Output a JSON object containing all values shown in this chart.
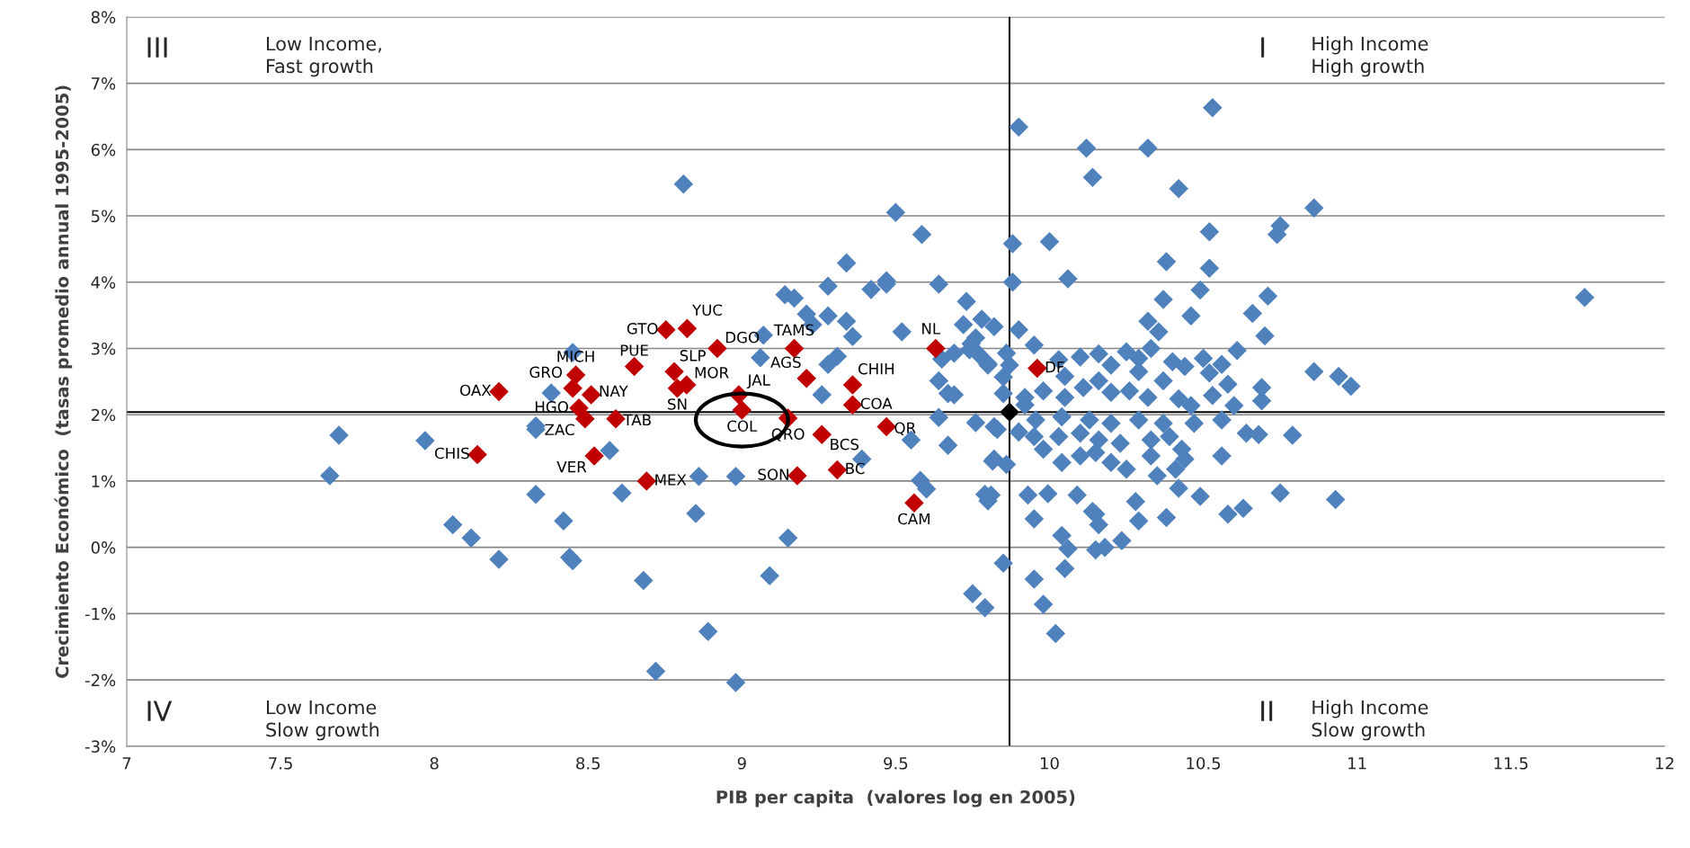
{
  "chart_data": {
    "type": "scatter",
    "xlabel": "PIB per capita  (valores log en 2005)",
    "ylabel": "Crecimiento Económico  (tasas promedio annual 1995-2005)",
    "xlim": [
      7,
      12
    ],
    "xticks": [
      7,
      7.5,
      8,
      8.5,
      9,
      9.5,
      10,
      10.5,
      11,
      11.5,
      12
    ],
    "ylim": [
      -3,
      8
    ],
    "yticks": [
      {
        "value": -3,
        "label": "-3%"
      },
      {
        "value": -2,
        "label": "-2%"
      },
      {
        "value": -1,
        "label": "-1%"
      },
      {
        "value": 0,
        "label": "0%"
      },
      {
        "value": 1,
        "label": "1%"
      },
      {
        "value": 2,
        "label": "2%"
      },
      {
        "value": 3,
        "label": "3%"
      },
      {
        "value": 4,
        "label": "4%"
      },
      {
        "value": 5,
        "label": "5%"
      },
      {
        "value": 6,
        "label": "6%"
      },
      {
        "value": 7,
        "label": "7%"
      },
      {
        "value": 8,
        "label": "8%"
      }
    ],
    "grid": "y",
    "legend": false,
    "marker": "diamond",
    "ref_lines": [
      {
        "axis": "y",
        "value": 2.04,
        "color": "#000000"
      },
      {
        "axis": "x",
        "value": 9.87,
        "color": "#000000"
      }
    ],
    "annotations": [
      "III",
      "Low Income,\nFast growth",
      "I",
      "High Income\nHigh growth",
      "IV",
      "Low Income\nSlow growth",
      "II",
      "High Income\nSlow growth"
    ],
    "series": [
      {
        "color": "#4f81bd",
        "x": [
          7.66,
          7.69,
          7.97,
          8.06,
          8.12,
          8.21,
          8.33,
          8.33,
          8.33,
          8.42,
          8.44,
          8.45,
          8.45,
          8.38,
          8.57,
          8.61,
          8.68,
          8.72,
          8.81,
          8.85,
          8.86,
          8.89,
          8.98,
          8.98,
          9.06,
          9.07,
          9.09,
          9.14,
          9.17,
          9.15,
          9.21,
          9.23,
          9.28,
          9.28,
          9.31,
          9.28,
          9.26,
          9.34,
          9.34,
          9.36,
          9.39,
          9.42,
          9.47,
          9.47,
          9.5,
          9.52,
          9.55,
          9.58,
          9.6,
          9.585,
          9.64,
          9.64,
          9.65,
          9.69,
          9.64,
          9.67,
          9.69,
          9.67,
          9.73,
          9.72,
          9.74,
          9.76,
          9.745,
          9.77,
          9.78,
          9.76,
          9.75,
          9.79,
          9.8,
          9.82,
          9.79,
          9.8,
          9.82,
          9.83,
          9.85,
          9.85,
          9.85,
          9.86,
          9.88,
          9.88,
          9.9,
          9.9,
          9.86,
          9.9,
          9.92,
          9.95,
          9.95,
          9.98,
          10.0,
          10.02,
          10.05,
          10.04,
          10.06,
          10.12,
          10.14,
          10.15,
          10.16,
          10.18,
          10.32,
          10.42,
          10.38,
          10.53,
          10.52,
          10.52,
          10.49,
          10.46,
          10.37,
          10.32,
          10.355,
          10.75,
          10.74,
          10.86,
          10.71,
          10.66,
          10.7,
          10.61,
          10.86,
          10.79,
          10.75,
          10.93,
          10.94,
          10.98,
          11.74,
          10.63,
          10.58,
          10.49,
          9.95,
          9.8,
          9.87,
          10.03,
          10.1,
          10.16,
          10.2,
          10.25,
          10.29,
          10.33,
          10.29,
          10.4,
          10.44,
          10.5,
          10.56,
          10.52,
          10.37,
          10.58,
          10.69,
          10.69,
          10.05,
          9.92,
          9.98,
          10.05,
          10.11,
          10.16,
          10.2,
          10.26,
          10.32,
          10.42,
          10.46,
          10.53,
          10.6,
          9.82,
          9.955,
          10.04,
          10.13,
          10.2,
          10.29,
          10.37,
          10.47,
          10.56,
          10.64,
          10.68,
          9.95,
          10.03,
          10.1,
          10.16,
          10.23,
          10.33,
          10.39,
          10.43,
          10.56,
          9.815,
          9.98,
          10.04,
          10.1,
          10.15,
          10.2,
          10.25,
          10.33,
          10.35,
          10.41,
          10.44,
          9.81,
          9.93,
          9.995,
          10.09,
          10.14,
          10.28,
          10.29,
          10.38,
          10.42,
          10.06,
          10.15,
          10.235
        ],
        "values": [
          1.08,
          1.69,
          1.61,
          0.34,
          0.14,
          -0.18,
          1.83,
          1.78,
          0.8,
          0.4,
          -0.15,
          -0.2,
          2.94,
          2.33,
          1.46,
          0.82,
          -0.5,
          -1.87,
          5.48,
          0.51,
          1.07,
          -1.27,
          1.07,
          -2.04,
          2.86,
          3.2,
          -0.43,
          3.81,
          3.76,
          0.14,
          3.52,
          3.36,
          3.94,
          3.49,
          2.88,
          2.76,
          2.3,
          4.29,
          3.41,
          3.18,
          1.33,
          3.89,
          4.02,
          3.97,
          5.05,
          3.25,
          1.62,
          1.01,
          0.88,
          4.72,
          3.97,
          2.51,
          2.84,
          2.93,
          1.96,
          1.54,
          2.3,
          2.32,
          3.71,
          3.36,
          2.98,
          3.16,
          3.07,
          2.91,
          3.44,
          1.88,
          -0.7,
          -0.91,
          2.77,
          3.33,
          0.8,
          0.7,
          1.33,
          1.78,
          2.57,
          2.32,
          -0.24,
          2.93,
          4.0,
          4.58,
          6.34,
          3.28,
          1.25,
          1.74,
          2.15,
          -0.48,
          0.43,
          -0.86,
          4.61,
          -1.3,
          -0.32,
          0.18,
          4.05,
          6.02,
          5.58,
          0.5,
          0.34,
          0.0,
          6.02,
          5.41,
          4.31,
          6.63,
          4.76,
          4.21,
          3.88,
          3.49,
          3.74,
          3.41,
          3.25,
          4.85,
          4.72,
          5.12,
          3.79,
          3.53,
          3.19,
          2.97,
          2.65,
          1.69,
          0.82,
          0.72,
          2.58,
          2.43,
          3.77,
          0.59,
          0.5,
          0.77,
          3.05,
          2.75,
          2.75,
          2.83,
          2.87,
          2.92,
          2.75,
          2.95,
          2.85,
          3.0,
          2.65,
          2.8,
          2.73,
          2.85,
          2.76,
          2.63,
          2.51,
          2.46,
          2.41,
          2.21,
          2.58,
          2.26,
          2.36,
          2.26,
          2.41,
          2.51,
          2.34,
          2.36,
          2.26,
          2.24,
          2.14,
          2.29,
          2.14,
          1.82,
          1.92,
          1.97,
          1.92,
          1.87,
          1.92,
          1.87,
          1.87,
          1.92,
          1.72,
          1.7,
          1.67,
          1.67,
          1.72,
          1.62,
          1.57,
          1.62,
          1.67,
          1.48,
          1.38,
          1.3,
          1.48,
          1.28,
          1.38,
          1.43,
          1.28,
          1.18,
          1.38,
          1.08,
          1.18,
          1.33,
          0.79,
          0.79,
          0.81,
          0.79,
          0.54,
          0.69,
          0.4,
          0.45,
          0.89,
          -0.02,
          -0.04,
          0.1
        ]
      },
      {
        "color": "#c00000",
        "x": [
          8.822,
          8.753,
          8.92,
          9.17,
          9.63,
          8.65,
          8.78,
          8.46,
          8.45,
          8.51,
          8.47,
          8.21,
          8.82,
          8.79,
          8.99,
          9.21,
          9.36,
          9.36,
          9.96,
          8.49,
          8.59,
          9.15,
          9.26,
          9.47,
          8.14,
          8.52,
          8.69,
          9.18,
          9.31,
          9.56,
          9.0
        ],
        "values": [
          3.3,
          3.28,
          3.0,
          3.0,
          3.0,
          2.73,
          2.65,
          2.6,
          2.4,
          2.3,
          2.1,
          2.35,
          2.45,
          2.4,
          2.3,
          2.55,
          2.45,
          2.15,
          2.7,
          1.94,
          1.94,
          1.95,
          1.7,
          1.82,
          1.4,
          1.38,
          1.0,
          1.08,
          1.17,
          0.67,
          2.07
        ],
        "value_labels": [
          "YUC",
          "GTO",
          "DGO",
          "TAMS",
          "NL",
          "PUE",
          "SLP",
          "MICH",
          "GRO",
          "NAY",
          "HGO",
          "OAX",
          "MOR",
          "SN",
          "JAL",
          "AGS",
          "CHIH",
          "COA",
          "DF",
          "ZAC",
          "TAB",
          "QRO",
          "BCS",
          "QR",
          "CHIS",
          "VER",
          "MEX",
          "SON",
          "BC",
          "CAM",
          "COL"
        ]
      },
      {
        "color": "#000000",
        "x": [
          9.87
        ],
        "values": [
          2.04
        ]
      }
    ]
  }
}
